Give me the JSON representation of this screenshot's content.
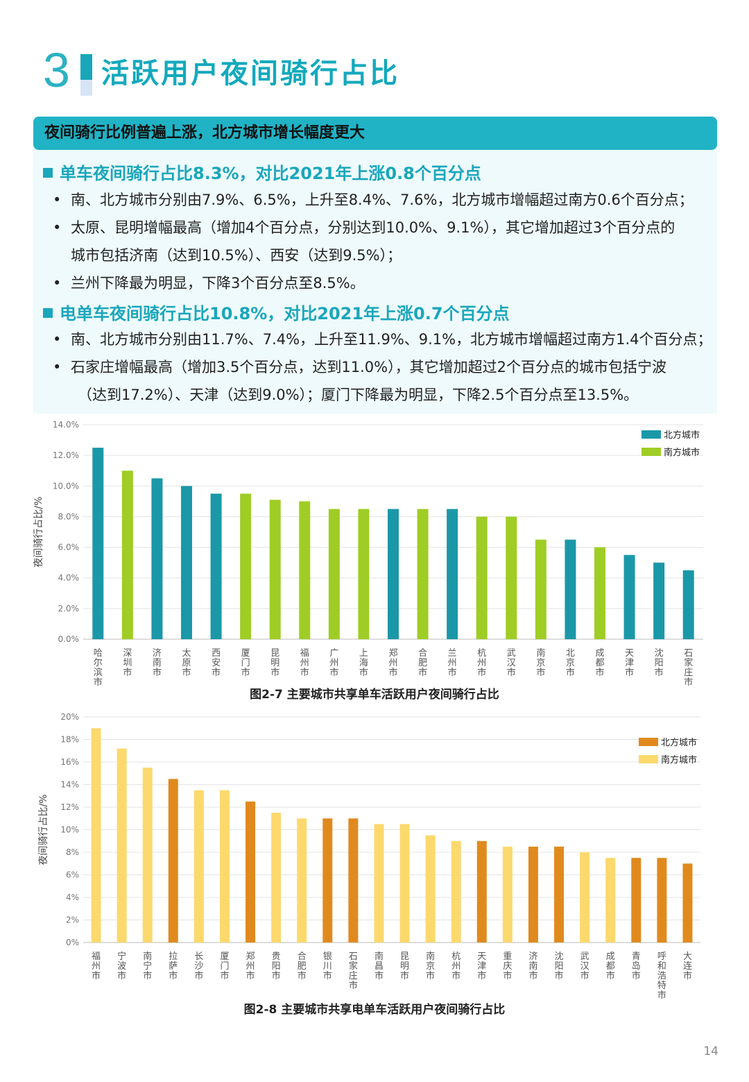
{
  "section": {
    "number": "3",
    "title": "活跃用户夜间骑行占比"
  },
  "summary": {
    "headline": "夜间骑行比例普遍上涨，北方城市增长幅度更大",
    "bike": {
      "title": "单车夜间骑行占比8.3%，对比2021年上涨0.8个百分点",
      "bullets": [
        "南、北方城市分别由7.9%、6.5%，上升至8.4%、7.6%，北方城市增幅超过南方0.6个百分点；",
        "太原、昆明增幅最高（增加4个百分点，分别达到10.0%、9.1%），其它增加超过3个百分点的",
        "城市包括济南（达到10.5%）、西安（达到9.5%）；",
        "兰州下降最为明显，下降3个百分点至8.5%。"
      ]
    },
    "ebike": {
      "title": "电单车夜间骑行占比10.8%，对比2021年上涨0.7个百分点",
      "bullets": [
        "南、北方城市分别由11.7%、7.4%，上升至11.9%、9.1%，北方城市增幅超过南方1.4个百分点；",
        "石家庄增幅最高（增加3.5个百分点，达到11.0%），其它增加超过2个百分点的城市包括宁波",
        "（达到17.2%）、天津（达到9.0%）；厦门下降最为明显，下降2.5个百分点至13.5%。"
      ]
    }
  },
  "chart_data": [
    {
      "type": "bar",
      "title": "图2-7 主要城市共享单车活跃用户夜间骑行占比",
      "ylabel": "夜间骑行占比/%",
      "xlabel": "",
      "ylim": [
        0,
        14
      ],
      "yticks": [
        "0.0%",
        "2.0%",
        "4.0%",
        "6.0%",
        "8.0%",
        "10.0%",
        "12.0%",
        "14.0%"
      ],
      "legend": [
        {
          "name": "北方城市",
          "key": "N",
          "color": "#1a98a8"
        },
        {
          "name": "南方城市",
          "key": "S",
          "color": "#9fcd25"
        }
      ],
      "categories": [
        "哈尔滨市",
        "深圳市",
        "济南市",
        "太原市",
        "西安市",
        "厦门市",
        "昆明市",
        "福州市",
        "广州市",
        "上海市",
        "郑州市",
        "合肥市",
        "兰州市",
        "杭州市",
        "武汉市",
        "南京市",
        "北京市",
        "成都市",
        "天津市",
        "沈阳市",
        "石家庄市"
      ],
      "values": [
        12.5,
        11.0,
        10.5,
        10.0,
        9.5,
        9.5,
        9.1,
        9.0,
        8.5,
        8.5,
        8.5,
        8.5,
        8.5,
        8.0,
        8.0,
        6.5,
        6.5,
        6.0,
        5.5,
        5.0,
        4.5
      ],
      "region": [
        "N",
        "S",
        "N",
        "N",
        "N",
        "S",
        "S",
        "S",
        "S",
        "S",
        "N",
        "S",
        "N",
        "S",
        "S",
        "S",
        "N",
        "S",
        "N",
        "N",
        "N"
      ]
    },
    {
      "type": "bar",
      "title": "图2-8 主要城市共享电单车活跃用户夜间骑行占比",
      "ylabel": "夜间骑行占比/%",
      "xlabel": "",
      "ylim": [
        0,
        20
      ],
      "yticks": [
        "0%",
        "2%",
        "4%",
        "6%",
        "8%",
        "10%",
        "12%",
        "14%",
        "16%",
        "18%",
        "20%"
      ],
      "legend": [
        {
          "name": "北方城市",
          "key": "N",
          "color": "#e08a1e"
        },
        {
          "name": "南方城市",
          "key": "S",
          "color": "#fcd96d"
        }
      ],
      "categories": [
        "福州市",
        "宁波市",
        "南宁市",
        "拉萨市",
        "长沙市",
        "厦门市",
        "郑州市",
        "贵阳市",
        "合肥市",
        "银川市",
        "石家庄市",
        "南昌市",
        "昆明市",
        "南京市",
        "杭州市",
        "天津市",
        "重庆市",
        "济南市",
        "沈阳市",
        "武汉市",
        "成都市",
        "青岛市",
        "呼和浩特市",
        "大连市"
      ],
      "values": [
        19.0,
        17.2,
        15.5,
        14.5,
        13.5,
        13.5,
        12.5,
        11.5,
        11.0,
        11.0,
        11.0,
        10.5,
        10.5,
        9.5,
        9.0,
        9.0,
        8.5,
        8.5,
        8.5,
        8.0,
        7.5,
        7.5,
        7.5,
        7.0
      ],
      "region": [
        "S",
        "S",
        "S",
        "N",
        "S",
        "S",
        "N",
        "S",
        "S",
        "N",
        "N",
        "S",
        "S",
        "S",
        "S",
        "N",
        "S",
        "N",
        "N",
        "S",
        "S",
        "N",
        "N",
        "N"
      ]
    }
  ],
  "page_number": "14"
}
